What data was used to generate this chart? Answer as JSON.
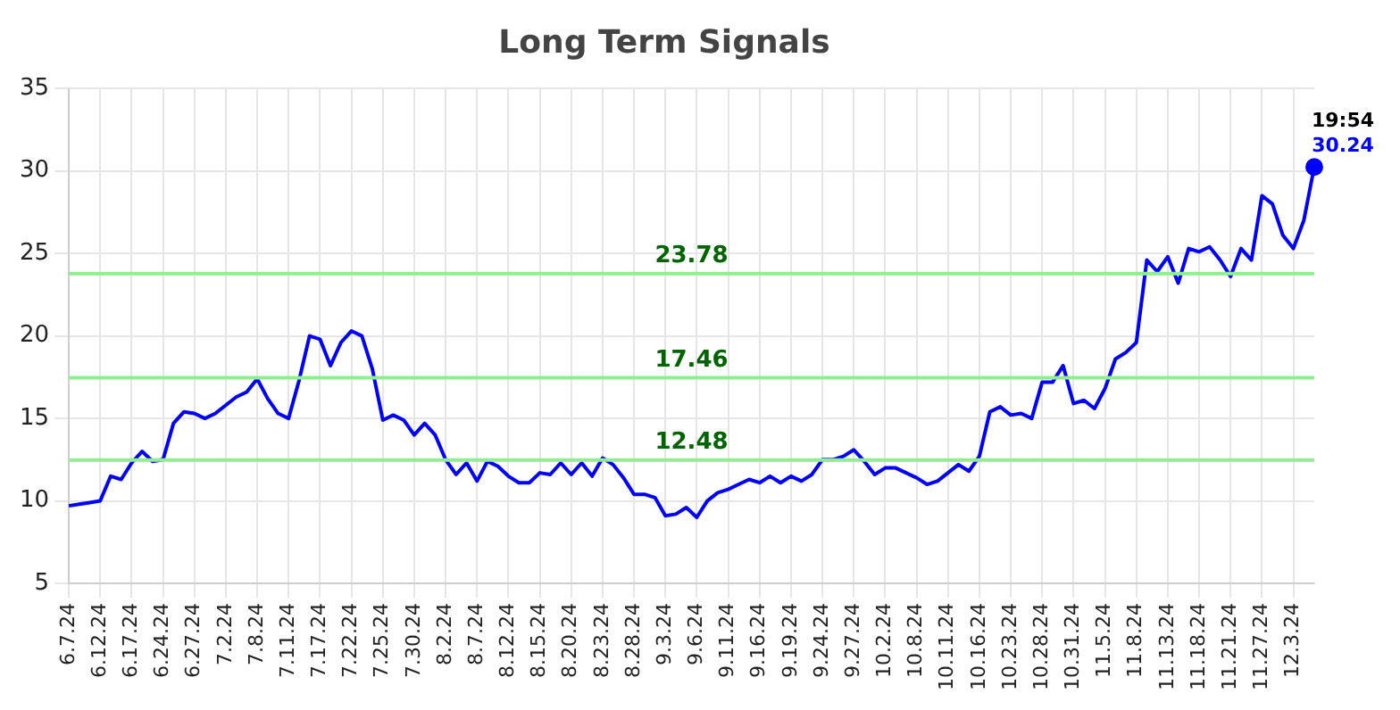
{
  "chart_data": {
    "type": "line",
    "title": "Long Term Signals",
    "categories": [
      "6.7.24",
      null,
      null,
      "6.12.24",
      null,
      null,
      "6.17.24",
      null,
      null,
      "6.24.24",
      null,
      null,
      "6.27.24",
      null,
      null,
      "7.2.24",
      null,
      null,
      "7.8.24",
      null,
      null,
      "7.11.24",
      null,
      null,
      "7.17.24",
      null,
      null,
      "7.22.24",
      null,
      null,
      "7.25.24",
      null,
      null,
      "7.30.24",
      null,
      null,
      "8.2.24",
      null,
      null,
      "8.7.24",
      null,
      null,
      "8.12.24",
      null,
      null,
      "8.15.24",
      null,
      null,
      "8.20.24",
      null,
      null,
      "8.23.24",
      null,
      null,
      "8.28.24",
      null,
      null,
      "9.3.24",
      null,
      null,
      "9.6.24",
      null,
      null,
      "9.11.24",
      null,
      null,
      "9.16.24",
      null,
      null,
      "9.19.24",
      null,
      null,
      "9.24.24",
      null,
      null,
      "9.27.24",
      null,
      null,
      "10.2.24",
      null,
      null,
      "10.8.24",
      null,
      null,
      "10.11.24",
      null,
      null,
      "10.16.24",
      null,
      null,
      "10.23.24",
      null,
      null,
      "10.28.24",
      null,
      null,
      "10.31.24",
      null,
      null,
      "11.5.24",
      null,
      null,
      "11.8.24",
      null,
      null,
      "11.13.24",
      null,
      null,
      "11.18.24",
      null,
      null,
      "11.21.24",
      null,
      null,
      "11.27.24",
      null,
      null,
      "12.3.24",
      null,
      null
    ],
    "series": [
      {
        "color": "#0000ff",
        "values": [
          9.7,
          9.8,
          9.9,
          10.0,
          11.5,
          11.3,
          12.3,
          13.0,
          12.4,
          12.5,
          14.7,
          15.4,
          15.3,
          15.0,
          15.3,
          15.8,
          16.3,
          16.6,
          17.4,
          16.2,
          15.3,
          15.0,
          17.3,
          20.0,
          19.8,
          18.2,
          19.6,
          20.3,
          20.0,
          18.0,
          14.9,
          15.2,
          14.9,
          14.0,
          14.7,
          14.0,
          12.5,
          11.6,
          12.3,
          11.2,
          12.4,
          12.1,
          11.5,
          11.1,
          11.1,
          11.7,
          11.6,
          12.3,
          11.6,
          12.3,
          11.5,
          12.6,
          12.2,
          11.4,
          10.4,
          10.4,
          10.2,
          9.1,
          9.2,
          9.6,
          9.0,
          10.0,
          10.5,
          10.7,
          11.0,
          11.3,
          11.1,
          11.5,
          11.1,
          11.5,
          11.2,
          11.6,
          12.5,
          12.5,
          12.7,
          13.1,
          12.4,
          11.6,
          12.0,
          12.0,
          11.7,
          11.4,
          11.0,
          11.2,
          11.7,
          12.2,
          11.8,
          12.7,
          15.4,
          15.7,
          15.2,
          15.3,
          15.0,
          17.2,
          17.2,
          18.2,
          15.9,
          16.1,
          15.6,
          16.8,
          18.6,
          19.0,
          19.6,
          24.6,
          23.9,
          24.8,
          23.2,
          25.3,
          25.1,
          25.4,
          24.6,
          23.6,
          25.3,
          24.6,
          28.5,
          28.0,
          26.1,
          25.3,
          27.0,
          30.24
        ],
        "value_labels": [
          null,
          null,
          null,
          null,
          null,
          null,
          null,
          null,
          null,
          null,
          null,
          null,
          null,
          null,
          null,
          null,
          null,
          null,
          null,
          null,
          null,
          null,
          null,
          null,
          null,
          null,
          null,
          null,
          null,
          null,
          null,
          null,
          null,
          null,
          null,
          null,
          null,
          null,
          null,
          null,
          null,
          null,
          null,
          null,
          null,
          null,
          null,
          null,
          null,
          null,
          null,
          null,
          null,
          null,
          null,
          null,
          null,
          null,
          null,
          null,
          null,
          null,
          null,
          null,
          null,
          null,
          null,
          null,
          null,
          null,
          null,
          null,
          null,
          null,
          null,
          null,
          null,
          null,
          null,
          null,
          null,
          null,
          null,
          null,
          null,
          null,
          null,
          null,
          null,
          null,
          null,
          null,
          null,
          null,
          null,
          null,
          null,
          null,
          null,
          null,
          null,
          null,
          null,
          null,
          null,
          null,
          null,
          null,
          null,
          null,
          null,
          null,
          null,
          null,
          null,
          null,
          null,
          null,
          null,
          "30.24"
        ]
      }
    ],
    "annotations": [
      "19:54"
    ],
    "ref_lines": [
      {
        "axis": "y",
        "value": 23.78,
        "label": "23.78",
        "color": "#90ee90"
      },
      {
        "axis": "y",
        "value": 17.46,
        "label": "17.46",
        "color": "#90ee90"
      },
      {
        "axis": "y",
        "value": 12.48,
        "label": "12.48",
        "color": "#90ee90"
      }
    ],
    "ylim": [
      5,
      35
    ],
    "yticks": [
      5,
      10,
      15,
      20,
      25,
      30,
      35
    ],
    "grid": true,
    "legend": false
  }
}
